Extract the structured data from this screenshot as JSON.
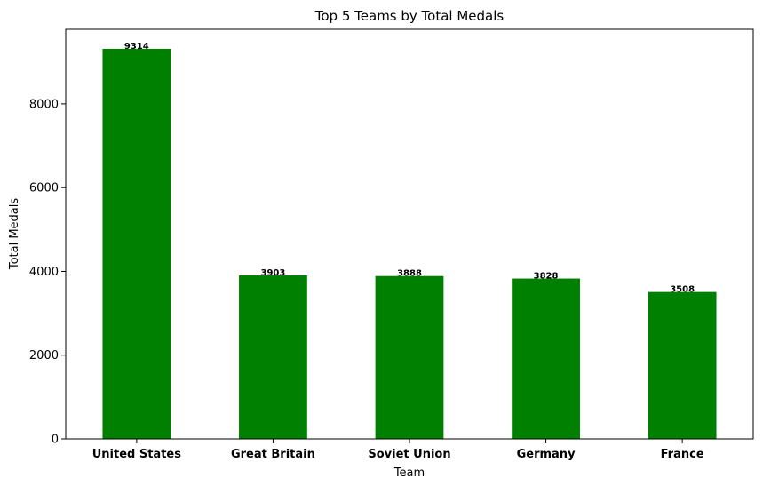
{
  "chart_data": {
    "type": "bar",
    "title": "Top 5 Teams by Total Medals",
    "xlabel": "Team",
    "ylabel": "Total Medals",
    "categories": [
      "United States",
      "Great Britain",
      "Soviet Union",
      "Germany",
      "France"
    ],
    "values": [
      9314,
      3903,
      3888,
      3828,
      3508
    ],
    "data_labels": [
      "9314",
      "3903",
      "3888",
      "3828",
      "3508"
    ],
    "ylim": [
      0,
      9780
    ],
    "yticks": [
      0,
      2000,
      4000,
      6000,
      8000
    ],
    "ytick_labels": [
      "0",
      "2000",
      "4000",
      "6000",
      "8000"
    ],
    "bar_color": "#008000",
    "grid": false,
    "legend": "none"
  }
}
